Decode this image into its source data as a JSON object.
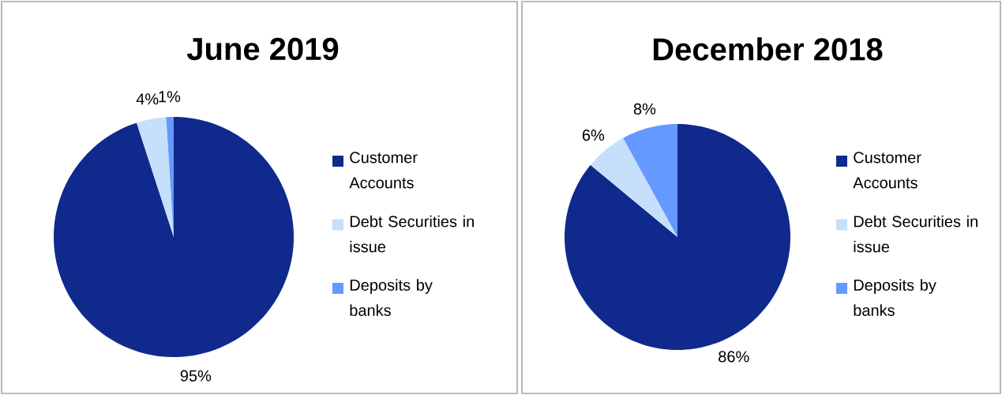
{
  "chart_data": [
    {
      "type": "pie",
      "title": "June 2019",
      "categories": [
        "Customer Accounts",
        "Debt Securities in issue",
        "Deposits by banks"
      ],
      "values": [
        95,
        4,
        1
      ],
      "colors": [
        "#0f2a8c",
        "#c6e0fb",
        "#6699ff"
      ],
      "value_labels": [
        "95%",
        "4%",
        "1%"
      ],
      "legend": "right"
    },
    {
      "type": "pie",
      "title": "December 2018",
      "categories": [
        "Customer Accounts",
        "Debt Securities in issue",
        "Deposits by banks"
      ],
      "values": [
        86,
        6,
        8
      ],
      "colors": [
        "#0f2a8c",
        "#c6e0fb",
        "#6699ff"
      ],
      "value_labels": [
        "86%",
        "6%",
        "8%"
      ],
      "legend": "right"
    }
  ]
}
